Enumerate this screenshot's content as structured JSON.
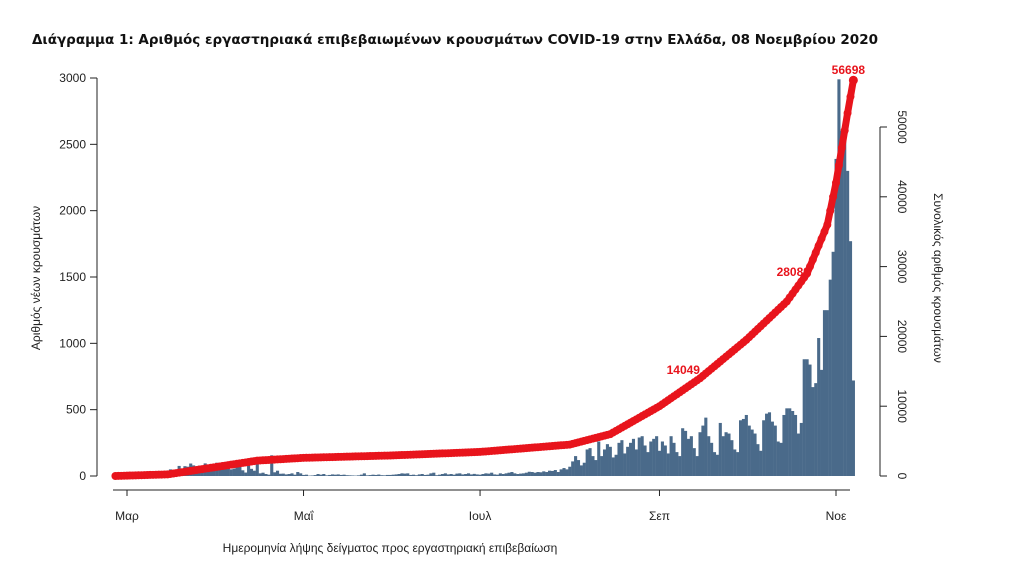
{
  "chart_data": {
    "type": "bar+line",
    "title": "Διάγραμμα 1: Αριθμός εργαστηριακά επιβεβαιωμένων κρουσμάτων COVID-19 στην Ελλάδα, 08 Νοεμβρίου 2020",
    "xlabel": "Ημερομηνία λήψης δείγματος προς εργαστηριακή επιβεβαίωση",
    "ylabel_left": "Αριθμός νέων κρουσμάτων",
    "ylabel_right": "Συνολικός αριθμός κρουσμάτων",
    "xlim": [
      "2020-02-26",
      "2020-11-07"
    ],
    "x_ticks": [
      {
        "date": "2020-03-01",
        "label": "Μαρ"
      },
      {
        "date": "2020-05-01",
        "label": "Μαΐ"
      },
      {
        "date": "2020-07-01",
        "label": "Ιουλ"
      },
      {
        "date": "2020-09-01",
        "label": "Σεπ"
      },
      {
        "date": "2020-11-01",
        "label": "Νοε"
      }
    ],
    "ylim_left": [
      0,
      3000
    ],
    "yticks_left": [
      0,
      500,
      1000,
      1500,
      2000,
      2500,
      3000
    ],
    "ylim_right": [
      0,
      56698
    ],
    "yticks_right": [
      0,
      10000,
      20000,
      30000,
      40000,
      50000
    ],
    "bar_color": "#4a6a8a",
    "line_color": "#e8141c",
    "daily_new_cases": [
      1,
      1,
      1,
      0,
      2,
      0,
      0,
      2,
      22,
      14,
      13,
      5,
      11,
      10,
      5,
      27,
      32,
      38,
      21,
      50,
      30,
      40,
      76,
      30,
      74,
      70,
      94,
      80,
      48,
      78,
      71,
      95,
      55,
      50,
      90,
      100,
      90,
      53,
      73,
      64,
      50,
      56,
      72,
      80,
      43,
      26,
      100,
      54,
      40,
      120,
      20,
      25,
      15,
      10,
      156,
      28,
      40,
      17,
      18,
      12,
      15,
      20,
      10,
      30,
      20,
      8,
      10,
      3,
      4,
      7,
      15,
      10,
      15,
      5,
      8,
      12,
      10,
      12,
      8,
      10,
      6,
      5,
      4,
      3,
      5,
      10,
      20,
      5,
      7,
      10,
      8,
      11,
      6,
      5,
      8,
      8,
      10,
      12,
      15,
      20,
      18,
      20,
      8,
      10,
      6,
      12,
      15,
      8,
      10,
      20,
      25,
      6,
      10,
      15,
      20,
      12,
      15,
      10,
      18,
      20,
      12,
      15,
      20,
      12,
      16,
      12,
      10,
      15,
      20,
      18,
      25,
      12,
      10,
      20,
      15,
      20,
      25,
      30,
      20,
      15,
      18,
      20,
      25,
      32,
      30,
      25,
      30,
      28,
      35,
      30,
      40,
      38,
      45,
      30,
      50,
      60,
      50,
      70,
      110,
      150,
      120,
      80,
      100,
      200,
      210,
      150,
      120,
      260,
      150,
      200,
      240,
      220,
      140,
      160,
      250,
      270,
      170,
      220,
      250,
      280,
      200,
      290,
      300,
      230,
      180,
      260,
      280,
      300,
      190,
      260,
      230,
      170,
      300,
      250,
      180,
      150,
      360,
      340,
      280,
      300,
      210,
      150,
      330,
      380,
      440,
      300,
      250,
      180,
      160,
      400,
      300,
      330,
      320,
      270,
      200,
      180,
      420,
      430,
      460,
      380,
      350,
      320,
      240,
      190,
      420,
      470,
      480,
      410,
      380,
      260,
      250,
      460,
      510,
      510,
      490,
      460,
      320,
      400,
      880,
      880,
      840,
      670,
      700,
      1040,
      800,
      1250,
      1250,
      1480,
      1690,
      2390,
      2990,
      2600,
      2550,
      2300,
      1770,
      720
    ],
    "cumulative": [
      [
        "2020-02-26",
        0
      ],
      [
        "2020-03-15",
        230
      ],
      [
        "2020-04-01",
        1300
      ],
      [
        "2020-04-15",
        2200
      ],
      [
        "2020-05-01",
        2600
      ],
      [
        "2020-06-01",
        2950
      ],
      [
        "2020-07-01",
        3450
      ],
      [
        "2020-08-01",
        4500
      ],
      [
        "2020-08-15",
        6000
      ],
      [
        "2020-09-01",
        10000
      ],
      [
        "2020-09-15",
        14000
      ],
      [
        "2020-10-01",
        19500
      ],
      [
        "2020-10-15",
        25000
      ],
      [
        "2020-10-22",
        29000
      ],
      [
        "2020-10-29",
        36000
      ],
      [
        "2020-11-01",
        42000
      ],
      [
        "2020-11-03",
        47000
      ],
      [
        "2020-11-05",
        52000
      ],
      [
        "2020-11-07",
        56698
      ]
    ],
    "annotations": [
      {
        "date": "2020-09-12",
        "value": 14049,
        "label": "14049"
      },
      {
        "date": "2020-10-20",
        "value": 28089,
        "label": "28089"
      },
      {
        "date": "2020-11-07",
        "value": 56698,
        "label": "56698"
      }
    ]
  }
}
